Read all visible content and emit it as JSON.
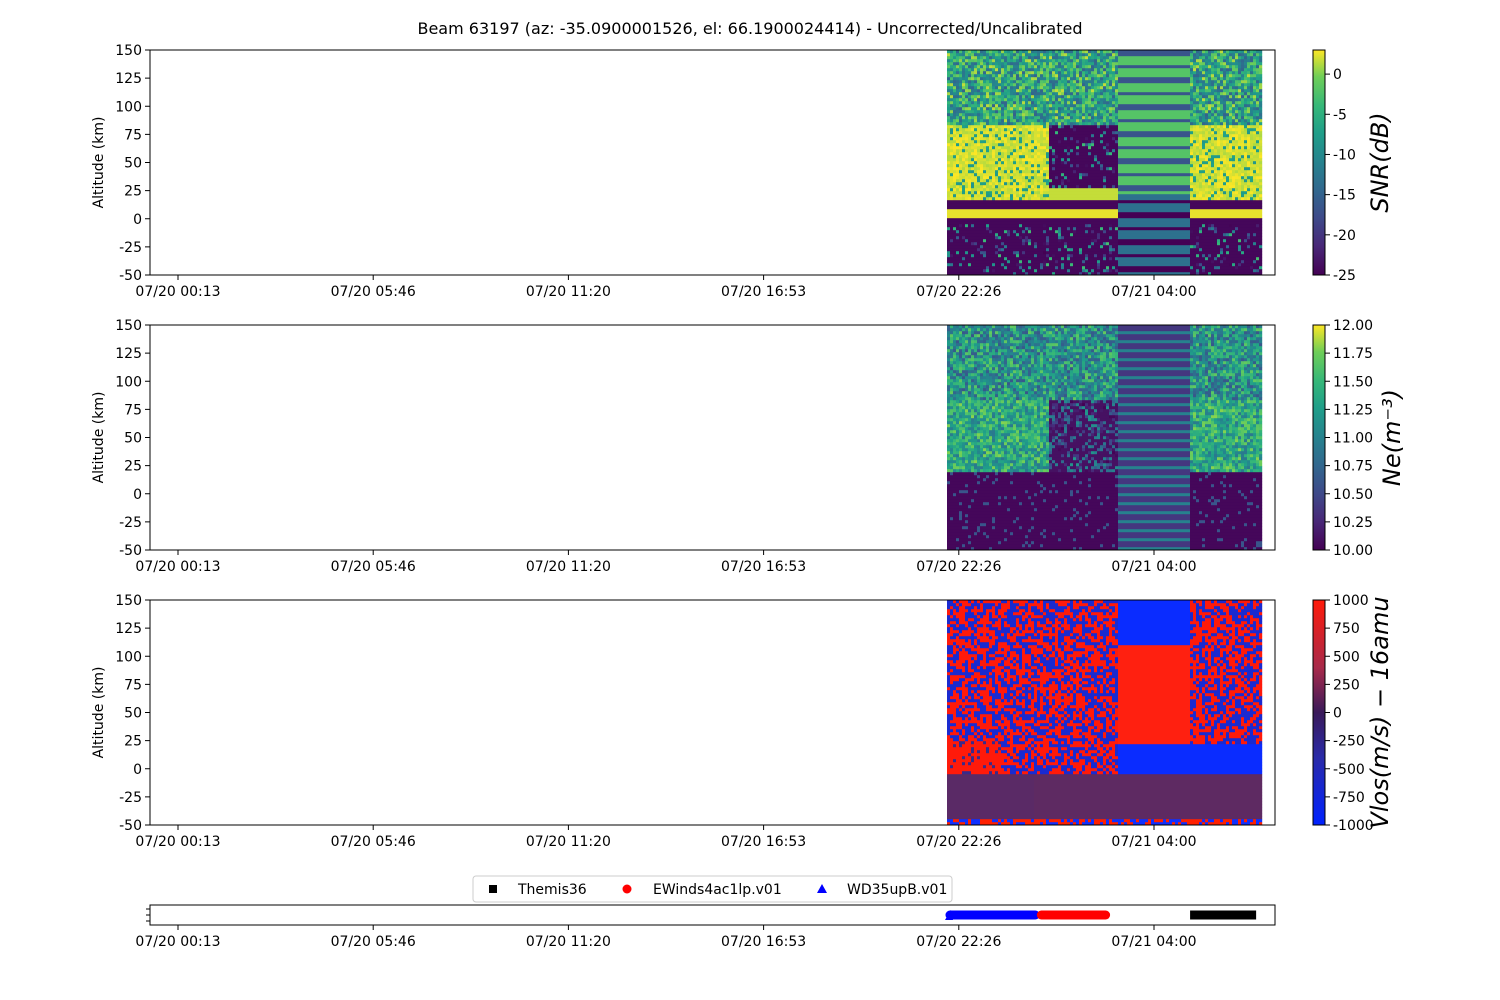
{
  "title": "Beam 63197 (az: -35.0900001526, el: 66.1900024414) - Uncorrected/Uncalibrated",
  "chart_data": [
    {
      "type": "heatmap",
      "ylabel": "Altitude (km)",
      "ylim": [
        -50,
        150
      ],
      "yticks": [
        "-50",
        "-25",
        "0",
        "25",
        "50",
        "75",
        "100",
        "125",
        "150"
      ],
      "xticks": [
        "07/20 00:13",
        "07/20 05:46",
        "07/20 11:20",
        "07/20 16:53",
        "07/20 22:26",
        "07/21 04:00"
      ],
      "colorbar": {
        "label": "SNR(dB)",
        "min": -25,
        "max": 3,
        "ticks": [
          "-25",
          "-20",
          "-15",
          "-10",
          "-5",
          "0"
        ],
        "colormap": "viridis"
      },
      "data_extent": {
        "start": "07/20 22:06",
        "end": "07/21 06:59"
      }
    },
    {
      "type": "heatmap",
      "ylabel": "Altitude (km)",
      "ylim": [
        -50,
        150
      ],
      "yticks": [
        "-50",
        "-25",
        "0",
        "25",
        "50",
        "75",
        "100",
        "125",
        "150"
      ],
      "xticks": [
        "07/20 00:13",
        "07/20 05:46",
        "07/20 11:20",
        "07/20 16:53",
        "07/20 22:26",
        "07/21 04:00"
      ],
      "colorbar": {
        "label": "Ne(m⁻³)",
        "min": 10.0,
        "max": 12.0,
        "ticks": [
          "10.00",
          "10.25",
          "10.50",
          "10.75",
          "11.00",
          "11.25",
          "11.50",
          "11.75",
          "12.00"
        ],
        "colormap": "viridis"
      },
      "data_extent": {
        "start": "07/20 22:06",
        "end": "07/21 06:59"
      }
    },
    {
      "type": "heatmap",
      "ylabel": "Altitude (km)",
      "ylim": [
        -50,
        150
      ],
      "yticks": [
        "-50",
        "-25",
        "0",
        "25",
        "50",
        "75",
        "100",
        "125",
        "150"
      ],
      "xticks": [
        "07/20 00:13",
        "07/20 05:46",
        "07/20 11:20",
        "07/20 16:53",
        "07/20 22:26",
        "07/21 04:00"
      ],
      "colorbar": {
        "label": "Vlos(m/s) − 16amu",
        "min": -1000,
        "max": 1000,
        "ticks": [
          "-1000",
          "-750",
          "-500",
          "-250",
          "0",
          "250",
          "500",
          "750",
          "1000"
        ],
        "colormap": "bwr-dark"
      },
      "data_extent": {
        "start": "07/20 22:06",
        "end": "07/21 06:59"
      }
    },
    {
      "type": "scatter",
      "xticks": [
        "07/20 00:13",
        "07/20 05:46",
        "07/20 11:20",
        "07/20 16:53",
        "07/20 22:26",
        "07/21 04:00"
      ],
      "legend": {
        "placement": "top-center",
        "entries": [
          {
            "name": "Themis36",
            "marker": "square",
            "color": "#000000"
          },
          {
            "name": "EWinds4ac1lp.v01",
            "marker": "circle",
            "color": "#ff0000"
          },
          {
            "name": "WD35upB.v01",
            "marker": "triangle",
            "color": "#0000ff"
          }
        ]
      },
      "series": [
        {
          "name": "WD35upB.v01",
          "start": "07/20 22:06",
          "end": "07/21 00:42"
        },
        {
          "name": "EWinds4ac1lp.v01",
          "start": "07/21 00:42",
          "end": "07/21 02:42"
        },
        {
          "name": "Themis36",
          "start": "07/21 04:56",
          "end": "07/21 06:59"
        }
      ]
    }
  ]
}
